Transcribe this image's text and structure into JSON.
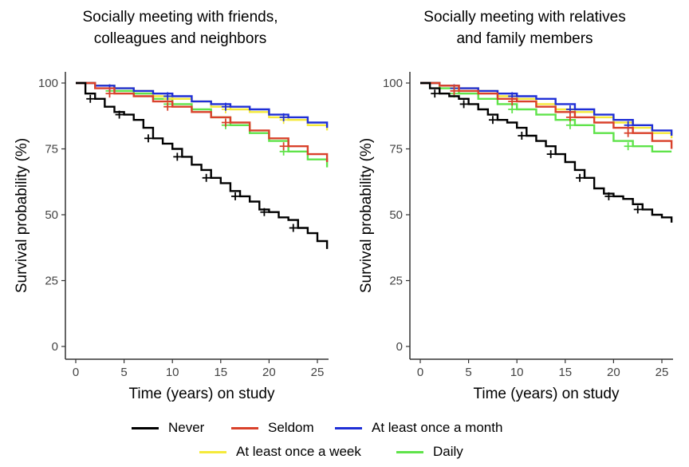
{
  "chart_data": [
    {
      "type": "line",
      "title": "Socially meeting with friends, colleagues and neighbors",
      "title_lines": [
        "Socially meeting with friends,",
        "colleagues and neighbors"
      ],
      "xlabel": "Time (years) on study",
      "ylabel": "Survival probability (%)",
      "xlim": [
        0,
        26
      ],
      "ylim": [
        0,
        100
      ],
      "x_ticks": [
        0,
        5,
        10,
        15,
        20,
        25
      ],
      "y_ticks": [
        0,
        25,
        50,
        75,
        100
      ],
      "grid": false,
      "series": [
        {
          "name": "Never",
          "color": "#000000",
          "x": [
            0,
            1,
            2,
            3,
            4,
            5,
            6,
            7,
            8,
            9,
            10,
            11,
            12,
            13,
            14,
            15,
            16,
            17,
            18,
            19,
            20,
            21,
            22,
            23,
            24,
            25,
            26
          ],
          "y": [
            100,
            96,
            94,
            91,
            89,
            88,
            86,
            83,
            79,
            77,
            75,
            72,
            69,
            67,
            64,
            62,
            59,
            57,
            55,
            52,
            51,
            49,
            48,
            45,
            43,
            40,
            37
          ]
        },
        {
          "name": "Seldom",
          "color": "#d9412b",
          "x": [
            0,
            2,
            4,
            6,
            8,
            10,
            12,
            14,
            16,
            18,
            20,
            22,
            24,
            26
          ],
          "y": [
            100,
            98,
            96,
            95,
            93,
            91,
            89,
            87,
            85,
            82,
            79,
            76,
            73,
            70
          ]
        },
        {
          "name": "At least once a month",
          "color": "#1f2fd6",
          "x": [
            0,
            2,
            4,
            6,
            8,
            10,
            12,
            14,
            16,
            18,
            20,
            22,
            24,
            26
          ],
          "y": [
            100,
            99,
            98,
            97,
            96,
            95,
            93,
            92,
            91,
            90,
            88,
            87,
            85,
            83
          ]
        },
        {
          "name": "At least once a week",
          "color": "#f5ea3a",
          "x": [
            0,
            2,
            4,
            6,
            8,
            10,
            12,
            14,
            16,
            18,
            20,
            22,
            24,
            26
          ],
          "y": [
            100,
            99,
            98,
            97,
            95,
            94,
            93,
            91,
            90,
            89,
            87,
            86,
            84,
            82
          ]
        },
        {
          "name": "Daily",
          "color": "#5fe34a",
          "x": [
            0,
            2,
            4,
            6,
            8,
            10,
            12,
            14,
            16,
            18,
            20,
            22,
            24,
            26
          ],
          "y": [
            100,
            99,
            97,
            96,
            94,
            92,
            90,
            87,
            84,
            81,
            78,
            74,
            71,
            68
          ]
        }
      ]
    },
    {
      "type": "line",
      "title": "Socially meeting with relatives and family members",
      "title_lines": [
        "Socially meeting with relatives",
        "and family members"
      ],
      "xlabel": "Time (years) on study",
      "ylabel": "Survival probability (%)",
      "xlim": [
        0,
        26
      ],
      "ylim": [
        0,
        100
      ],
      "x_ticks": [
        0,
        5,
        10,
        15,
        20,
        25
      ],
      "y_ticks": [
        0,
        25,
        50,
        75,
        100
      ],
      "grid": false,
      "series": [
        {
          "name": "Never",
          "color": "#000000",
          "x": [
            0,
            1,
            2,
            3,
            4,
            5,
            6,
            7,
            8,
            9,
            10,
            11,
            12,
            13,
            14,
            15,
            16,
            17,
            18,
            19,
            20,
            21,
            22,
            23,
            24,
            25,
            26
          ],
          "y": [
            100,
            98,
            96,
            95,
            94,
            92,
            90,
            88,
            86,
            85,
            83,
            80,
            78,
            76,
            73,
            70,
            67,
            64,
            60,
            58,
            57,
            56,
            54,
            52,
            50,
            49,
            47
          ]
        },
        {
          "name": "Seldom",
          "color": "#d9412b",
          "x": [
            0,
            2,
            4,
            6,
            8,
            10,
            12,
            14,
            16,
            18,
            20,
            22,
            24,
            26
          ],
          "y": [
            100,
            99,
            97,
            96,
            94,
            93,
            91,
            89,
            87,
            85,
            83,
            81,
            78,
            75
          ]
        },
        {
          "name": "At least once a month",
          "color": "#1f2fd6",
          "x": [
            0,
            2,
            4,
            6,
            8,
            10,
            12,
            14,
            16,
            18,
            20,
            22,
            24,
            26
          ],
          "y": [
            100,
            99,
            98,
            97,
            96,
            95,
            94,
            92,
            90,
            88,
            86,
            84,
            82,
            80
          ]
        },
        {
          "name": "At least once a week",
          "color": "#f5ea3a",
          "x": [
            0,
            2,
            4,
            6,
            8,
            10,
            12,
            14,
            16,
            18,
            20,
            22,
            24,
            26
          ],
          "y": [
            100,
            99,
            98,
            97,
            95,
            94,
            92,
            90,
            89,
            87,
            85,
            83,
            81,
            79
          ]
        },
        {
          "name": "Daily",
          "color": "#5fe34a",
          "x": [
            0,
            2,
            4,
            6,
            8,
            10,
            12,
            14,
            16,
            18,
            20,
            22,
            24,
            26
          ],
          "y": [
            100,
            98,
            96,
            94,
            92,
            90,
            88,
            86,
            84,
            81,
            78,
            76,
            74,
            74
          ]
        }
      ]
    }
  ],
  "legend": {
    "placement": "bottom",
    "items": [
      {
        "label": "Never",
        "color": "#000000"
      },
      {
        "label": "Seldom",
        "color": "#d9412b"
      },
      {
        "label": "At least once a month",
        "color": "#1f2fd6"
      },
      {
        "label": "At least once a week",
        "color": "#f5ea3a"
      },
      {
        "label": "Daily",
        "color": "#5fe34a"
      }
    ]
  }
}
